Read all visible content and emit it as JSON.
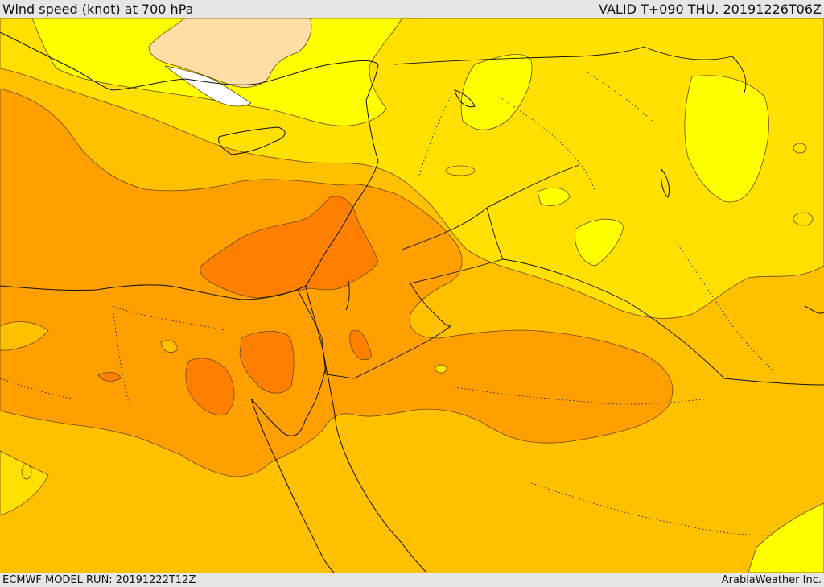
{
  "header": {
    "title": "Wind speed (knot) at 700 hPa",
    "valid": "VALID T+090 THU. 20191226T06Z"
  },
  "footer": {
    "model_run": "ECMWF MODEL RUN: 20191222T12Z",
    "credit": "ArabiaWeather Inc."
  },
  "palette": {
    "very_light": "#ffdfa6",
    "light": "#ffff00",
    "yellow_orange": "#ffe000",
    "amber": "#ffc000",
    "orange": "#ffa000",
    "deep_orange": "#ff8000",
    "calm": "#ffffff"
  }
}
